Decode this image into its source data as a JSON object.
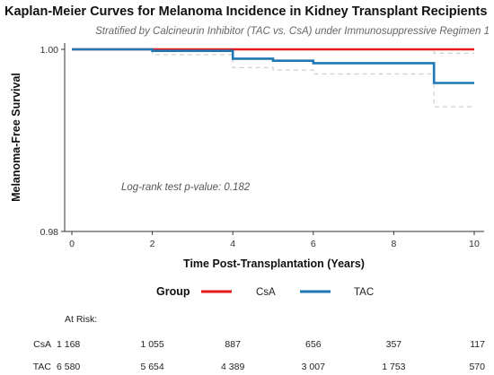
{
  "chart_data": {
    "type": "line",
    "title": "Kaplan-Meier Curves for Melanoma Incidence in Kidney Transplant Recipients",
    "subtitle": "Stratified by Calcineurin Inhibitor (TAC vs. CsA) under Immunosuppressive Regimen 1",
    "xlabel": "Time Post-Transplantation (Years)",
    "ylabel": "Melanoma-Free Survival",
    "xlim": [
      0,
      10
    ],
    "ylim": [
      0.98,
      1.0
    ],
    "xticks": [
      "0",
      "2",
      "4",
      "6",
      "8",
      "10"
    ],
    "yticks": [
      "0.98",
      "1.00"
    ],
    "grid": false,
    "annotation": "Log-rank test p-value: 0.182",
    "legend": {
      "title": "Group",
      "placement": "bottom",
      "entries": [
        {
          "label": "CsA",
          "color": "#e41a1c"
        },
        {
          "label": "TAC",
          "color": "#1f78b4"
        }
      ]
    },
    "series": [
      {
        "name": "CsA",
        "color": "#e41a1c",
        "steps": [
          [
            0,
            1.0
          ],
          [
            10,
            1.0
          ]
        ]
      },
      {
        "name": "TAC",
        "color": "#1f78b4",
        "steps": [
          [
            0,
            1.0
          ],
          [
            2,
            0.99985
          ],
          [
            4,
            0.99905
          ],
          [
            5,
            0.99885
          ],
          [
            6,
            0.9986
          ],
          [
            9,
            0.99655
          ],
          [
            10,
            0.99655
          ]
        ],
        "ci_upper": [
          [
            0,
            1.0
          ],
          [
            2,
            1.0
          ],
          [
            4,
            1.0
          ],
          [
            5,
            1.0
          ],
          [
            6,
            1.0
          ],
          [
            9,
            0.9996
          ],
          [
            10,
            0.9996
          ]
        ],
        "ci_lower": [
          [
            0,
            1.0
          ],
          [
            2,
            0.99945
          ],
          [
            4,
            0.99815
          ],
          [
            5,
            0.9979
          ],
          [
            6,
            0.9975
          ],
          [
            9,
            0.9939
          ],
          [
            10,
            0.9939
          ]
        ]
      }
    ],
    "risk_table": {
      "title": "At Risk:",
      "times": [
        0,
        2,
        4,
        6,
        8,
        10
      ],
      "rows": [
        {
          "label": "CsA",
          "counts": [
            "1 168",
            "1 055",
            "887",
            "656",
            "357",
            "117"
          ]
        },
        {
          "label": "TAC",
          "counts": [
            "6 580",
            "5 654",
            "4 389",
            "3 007",
            "1 753",
            "570"
          ]
        }
      ]
    }
  }
}
